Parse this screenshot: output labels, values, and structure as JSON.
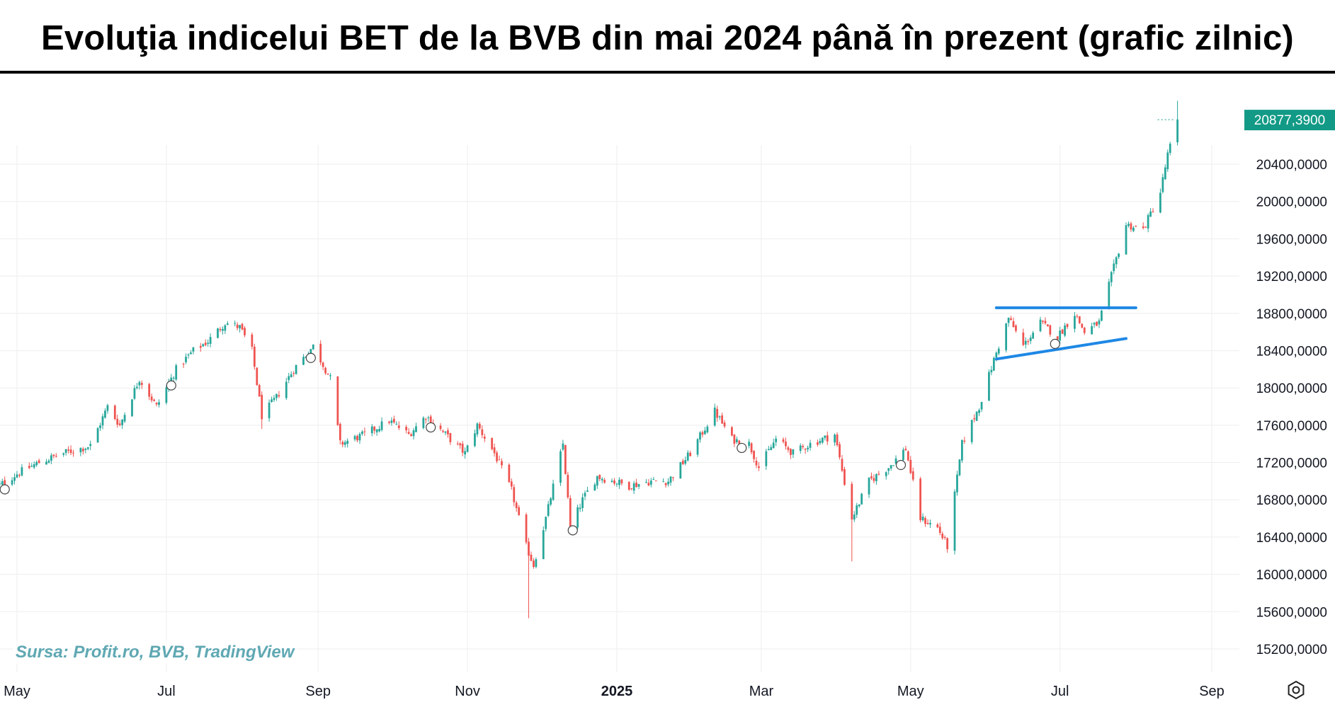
{
  "title": "Evoluţia indicelui BET de la BVB din mai 2024 până în prezent (grafic zilnic)",
  "source": "Sursa: Profit.ro, BVB, TradingView",
  "colors": {
    "up": "#26a69a",
    "down": "#ef5350",
    "pattern_line": "#1e88e5",
    "grid": "#eeeeee",
    "price_label_bg": "#129a86"
  },
  "icons": {
    "settings": "gear-icon"
  },
  "chart_data": {
    "type": "candlestick",
    "title": "Evoluţia indicelui BET de la BVB din mai 2024 până în prezent (grafic zilnic)",
    "x_ticks": [
      "May",
      "Jul",
      "Sep",
      "Nov",
      "2025",
      "Mar",
      "May",
      "Jul",
      "Sep"
    ],
    "x_tick_dates": [
      "2024-05-01",
      "2024-07-01",
      "2024-09-01",
      "2024-11-01",
      "2025-01-01",
      "2025-03-01",
      "2025-05-01",
      "2025-07-01",
      "2025-09-01"
    ],
    "y_ticks": [
      "15200,0000",
      "15600,0000",
      "16000,0000",
      "16400,0000",
      "16800,0000",
      "17200,0000",
      "17600,0000",
      "18000,0000",
      "18400,0000",
      "18800,0000",
      "19200,0000",
      "19600,0000",
      "20000,0000",
      "20400,0000"
    ],
    "y_tick_values": [
      15200,
      15600,
      16000,
      16400,
      16800,
      17200,
      17600,
      18000,
      18400,
      18800,
      19200,
      19600,
      20000,
      20400
    ],
    "ylim": [
      14950,
      21250
    ],
    "last_price_label": "20877,3900",
    "last_price": 20877.39,
    "close_series": [
      [
        "2024-04-22",
        16920
      ],
      [
        "2024-05-01",
        17080
      ],
      [
        "2024-05-10",
        17200
      ],
      [
        "2024-05-20",
        17300
      ],
      [
        "2024-05-31",
        17380
      ],
      [
        "2024-06-07",
        17800
      ],
      [
        "2024-06-12",
        17600
      ],
      [
        "2024-06-20",
        18100
      ],
      [
        "2024-06-27",
        17800
      ],
      [
        "2024-07-05",
        18200
      ],
      [
        "2024-07-12",
        18400
      ],
      [
        "2024-07-18",
        18500
      ],
      [
        "2024-07-25",
        18700
      ],
      [
        "2024-07-31",
        18650
      ],
      [
        "2024-08-05",
        18400
      ],
      [
        "2024-08-09",
        17700
      ],
      [
        "2024-08-15",
        17900
      ],
      [
        "2024-08-22",
        18200
      ],
      [
        "2024-08-30",
        18450
      ],
      [
        "2024-09-06",
        18100
      ],
      [
        "2024-09-10",
        17400
      ],
      [
        "2024-09-20",
        17500
      ],
      [
        "2024-09-30",
        17650
      ],
      [
        "2024-10-08",
        17500
      ],
      [
        "2024-10-15",
        17700
      ],
      [
        "2024-10-25",
        17450
      ],
      [
        "2024-10-31",
        17300
      ],
      [
        "2024-11-05",
        17600
      ],
      [
        "2024-11-12",
        17300
      ],
      [
        "2024-11-19",
        16900
      ],
      [
        "2024-11-25",
        16300
      ],
      [
        "2024-11-28",
        16100
      ],
      [
        "2024-12-03",
        16600
      ],
      [
        "2024-12-10",
        17400
      ],
      [
        "2024-12-13",
        16500
      ],
      [
        "2024-12-18",
        16800
      ],
      [
        "2024-12-24",
        17050
      ],
      [
        "2025-01-06",
        16950
      ],
      [
        "2025-01-15",
        17000
      ],
      [
        "2025-01-22",
        17000
      ],
      [
        "2025-01-31",
        17300
      ],
      [
        "2025-02-10",
        17750
      ],
      [
        "2025-02-17",
        17450
      ],
      [
        "2025-02-24",
        17400
      ],
      [
        "2025-02-28",
        17150
      ],
      [
        "2025-03-07",
        17450
      ],
      [
        "2025-03-14",
        17300
      ],
      [
        "2025-03-21",
        17400
      ],
      [
        "2025-03-31",
        17500
      ],
      [
        "2025-04-07",
        16600
      ],
      [
        "2025-04-14",
        17000
      ],
      [
        "2025-04-22",
        17150
      ],
      [
        "2025-04-29",
        17350
      ],
      [
        "2025-05-05",
        16600
      ],
      [
        "2025-05-12",
        16500
      ],
      [
        "2025-05-16",
        16300
      ],
      [
        "2025-05-22",
        17400
      ],
      [
        "2025-05-29",
        17800
      ],
      [
        "2025-06-04",
        18300
      ],
      [
        "2025-06-10",
        18750
      ],
      [
        "2025-06-16",
        18450
      ],
      [
        "2025-06-23",
        18700
      ],
      [
        "2025-06-30",
        18550
      ],
      [
        "2025-07-07",
        18800
      ],
      [
        "2025-07-11",
        18600
      ],
      [
        "2025-07-17",
        18700
      ],
      [
        "2025-07-22",
        19200
      ],
      [
        "2025-07-28",
        19750
      ],
      [
        "2025-08-04",
        19700
      ],
      [
        "2025-08-11",
        20100
      ],
      [
        "2025-08-14",
        20500
      ],
      [
        "2025-08-18",
        20850
      ]
    ],
    "pattern_lines": [
      {
        "name": "resistance",
        "from": [
          "2025-06-05",
          18860
        ],
        "to": [
          "2025-08-01",
          18860
        ]
      },
      {
        "name": "support",
        "from": [
          "2025-06-05",
          18310
        ],
        "to": [
          "2025-07-28",
          18530
        ]
      }
    ],
    "event_markers": [
      "2024-04-26",
      "2024-07-03",
      "2024-08-29",
      "2024-10-17",
      "2024-12-14",
      "2025-02-21",
      "2025-04-27",
      "2025-06-29"
    ],
    "grid": true
  }
}
